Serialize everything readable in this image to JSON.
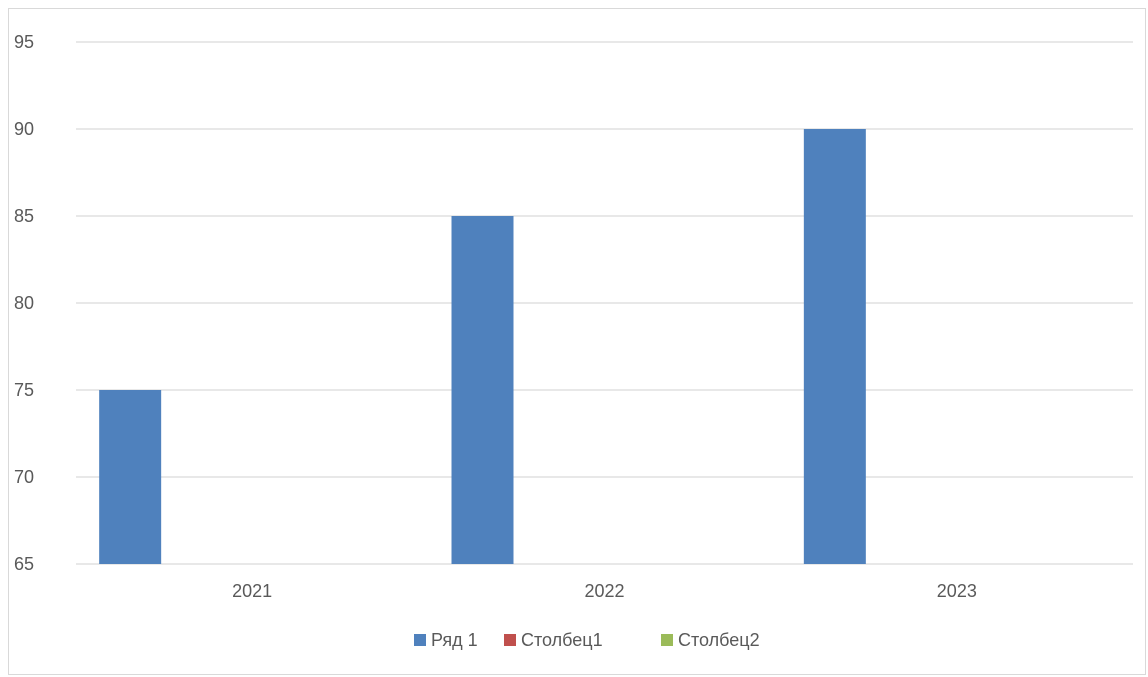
{
  "chart_data": {
    "type": "bar",
    "title": "",
    "xlabel": "",
    "ylabel": "",
    "categories": [
      "2021",
      "2022",
      "2023"
    ],
    "series": [
      {
        "name": "Ряд 1",
        "values": [
          75,
          85,
          90
        ],
        "color": "#4f81bd"
      },
      {
        "name": "Столбец1",
        "values": [
          null,
          null,
          null
        ],
        "color": "#c0504d"
      },
      {
        "name": "Столбец2",
        "values": [
          null,
          null,
          null
        ],
        "color": "#9bbb59"
      }
    ],
    "ylim": [
      65,
      95
    ],
    "yticks": [
      "65",
      "70",
      "75",
      "80",
      "85",
      "90",
      "95"
    ],
    "grid": true,
    "legend_position": "bottom",
    "colors": {
      "gridline": "#d9d9d9",
      "tick_text": "#595959"
    }
  }
}
